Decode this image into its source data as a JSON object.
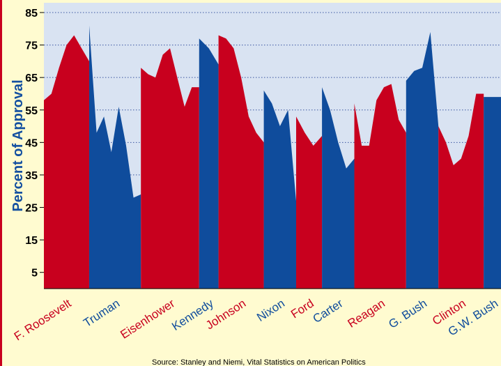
{
  "chart_data": {
    "type": "area",
    "title": "",
    "xlabel": "",
    "ylabel": "Percent of Approval",
    "ylim": [
      0,
      88
    ],
    "yticks": [
      5,
      15,
      25,
      35,
      45,
      55,
      65,
      75,
      85
    ],
    "grid": "horizontal dotted",
    "source": "Source: Stanley and Niemi, Vital Statistics on American Politics",
    "colors": {
      "red": "#c8001e",
      "blue": "#0f4c9c",
      "plot_bg": "#d9e3f2",
      "page_bg": "#fffbd0"
    },
    "series": [
      {
        "name": "F. Roosevelt",
        "color": "red",
        "values": [
          58,
          60,
          68,
          75,
          78,
          74,
          70
        ]
      },
      {
        "name": "Truman",
        "color": "blue",
        "values": [
          81,
          48,
          53,
          42,
          56,
          44,
          28,
          29
        ]
      },
      {
        "name": "Eisenhower",
        "color": "red",
        "values": [
          68,
          66,
          65,
          72,
          74,
          65,
          56,
          62,
          62
        ]
      },
      {
        "name": "Kennedy",
        "color": "blue",
        "values": [
          77,
          74,
          69
        ]
      },
      {
        "name": "Johnson",
        "color": "red",
        "values": [
          78,
          77,
          74,
          65,
          53,
          48,
          45
        ]
      },
      {
        "name": "Nixon",
        "color": "blue",
        "values": [
          61,
          57,
          50,
          55,
          27
        ]
      },
      {
        "name": "Ford",
        "color": "red",
        "values": [
          53,
          48,
          44,
          47
        ]
      },
      {
        "name": "Carter",
        "color": "blue",
        "values": [
          62,
          55,
          45,
          37,
          40
        ]
      },
      {
        "name": "Reagan",
        "color": "red",
        "values": [
          57,
          44,
          44,
          58,
          62,
          63,
          52,
          48
        ]
      },
      {
        "name": "G. Bush",
        "color": "blue",
        "values": [
          64,
          67,
          68,
          79,
          50
        ]
      },
      {
        "name": "Clinton",
        "color": "red",
        "values": [
          50,
          45,
          38,
          40,
          47,
          60,
          60
        ]
      },
      {
        "name": "G.W. Bush",
        "color": "blue",
        "values": [
          59,
          59,
          59
        ]
      }
    ]
  }
}
